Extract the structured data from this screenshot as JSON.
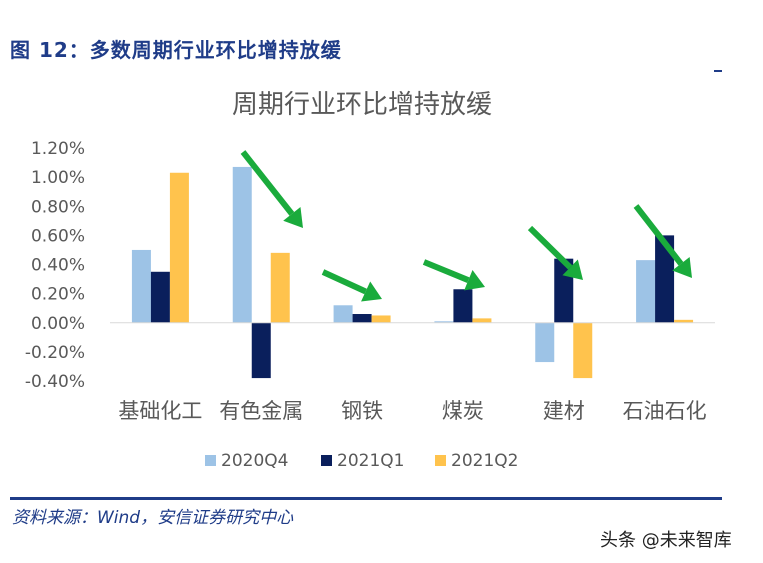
{
  "figure_title": "图 12：多数周期行业环比增持放缓",
  "source": "资料来源：Wind，安信证券研究中心",
  "watermark": "头条 @未来智库",
  "chart_data": {
    "type": "bar",
    "title": "周期行业环比增持放缓",
    "categories": [
      "基础化工",
      "有色金属",
      "钢铁",
      "煤炭",
      "建材",
      "石油石化"
    ],
    "series": [
      {
        "name": "2020Q4",
        "color": "#9dc3e6",
        "values": [
          0.5,
          1.07,
          0.12,
          0.01,
          -0.27,
          0.43
        ]
      },
      {
        "name": "2021Q1",
        "color": "#0a1f5c",
        "values": [
          0.35,
          -0.38,
          0.06,
          0.23,
          0.44,
          0.6
        ]
      },
      {
        "name": "2021Q2",
        "color": "#ffc34d",
        "values": [
          1.03,
          0.48,
          0.05,
          0.03,
          -0.38,
          0.02
        ]
      }
    ],
    "ylim": [
      -0.4,
      1.2
    ],
    "yticks": [
      "1.20%",
      "1.00%",
      "0.80%",
      "0.60%",
      "0.40%",
      "0.20%",
      "0.00%",
      "-0.20%",
      "-0.40%"
    ],
    "legend_position": "bottom",
    "arrow_color": "#1aab3c",
    "axis_text_color": "#595959"
  }
}
